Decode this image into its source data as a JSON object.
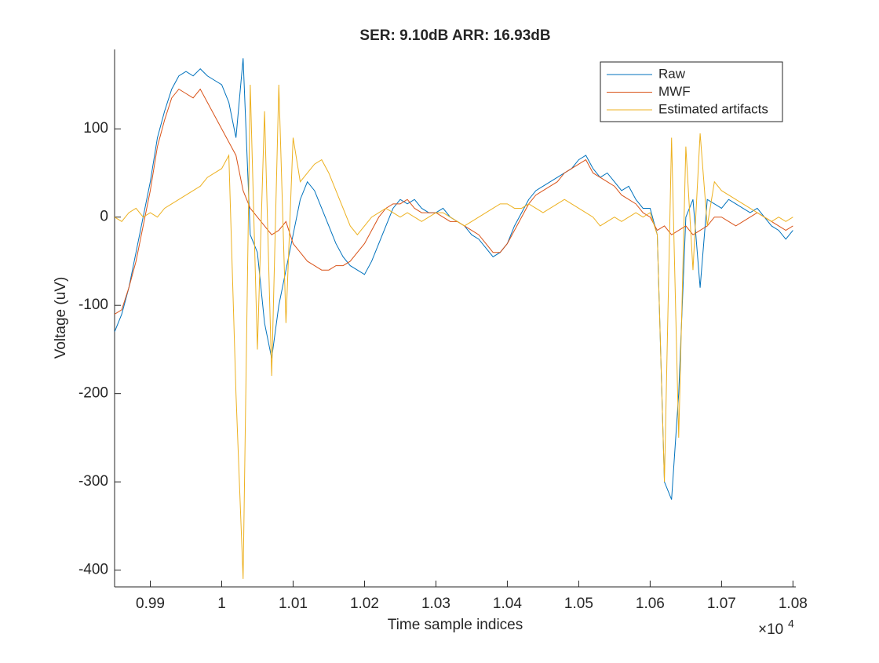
{
  "chart_data": {
    "type": "line",
    "title": "SER: 9.10dB ARR: 16.93dB",
    "x_label": "Time sample indices",
    "y_label": "Voltage (uV)",
    "x_exponent": {
      "base": "×10",
      "power": "4"
    },
    "x": [
      0.985,
      0.986,
      0.987,
      0.988,
      0.989,
      0.99,
      0.991,
      0.992,
      0.993,
      0.994,
      0.995,
      0.996,
      0.997,
      0.998,
      0.999,
      1.0,
      1.001,
      1.002,
      1.003,
      1.004,
      1.005,
      1.006,
      1.007,
      1.008,
      1.009,
      1.01,
      1.011,
      1.012,
      1.013,
      1.014,
      1.015,
      1.016,
      1.017,
      1.018,
      1.019,
      1.02,
      1.021,
      1.022,
      1.023,
      1.024,
      1.025,
      1.026,
      1.027,
      1.028,
      1.029,
      1.03,
      1.031,
      1.032,
      1.033,
      1.034,
      1.035,
      1.036,
      1.037,
      1.038,
      1.039,
      1.04,
      1.041,
      1.042,
      1.043,
      1.044,
      1.045,
      1.046,
      1.047,
      1.048,
      1.049,
      1.05,
      1.051,
      1.052,
      1.053,
      1.054,
      1.055,
      1.056,
      1.057,
      1.058,
      1.059,
      1.06,
      1.061,
      1.062,
      1.063,
      1.064,
      1.065,
      1.066,
      1.067,
      1.068,
      1.069,
      1.07,
      1.071,
      1.072,
      1.073,
      1.074,
      1.075,
      1.076,
      1.077,
      1.078,
      1.079,
      1.08
    ],
    "series": [
      {
        "name": "Raw",
        "color": "#0072BD",
        "values": [
          -130,
          -110,
          -80,
          -40,
          0,
          40,
          90,
          120,
          145,
          160,
          165,
          160,
          168,
          160,
          155,
          150,
          130,
          90,
          180,
          -20,
          -40,
          -120,
          -160,
          -100,
          -60,
          -20,
          20,
          40,
          30,
          10,
          -10,
          -30,
          -45,
          -55,
          -60,
          -65,
          -50,
          -30,
          -10,
          10,
          20,
          15,
          20,
          10,
          5,
          5,
          10,
          0,
          -5,
          -10,
          -20,
          -25,
          -35,
          -45,
          -40,
          -30,
          -10,
          5,
          20,
          30,
          35,
          40,
          45,
          50,
          55,
          65,
          70,
          55,
          45,
          50,
          40,
          30,
          35,
          20,
          10,
          10,
          -20,
          -300,
          -320,
          -200,
          0,
          20,
          -80,
          20,
          15,
          10,
          20,
          15,
          10,
          5,
          10,
          0,
          -10,
          -15,
          -25,
          -15
        ]
      },
      {
        "name": "MWF",
        "color": "#D95319",
        "values": [
          -110,
          -105,
          -80,
          -50,
          -10,
          30,
          80,
          110,
          135,
          145,
          140,
          135,
          145,
          130,
          115,
          100,
          85,
          70,
          30,
          10,
          0,
          -10,
          -20,
          -15,
          -5,
          -30,
          -40,
          -50,
          -55,
          -60,
          -60,
          -55,
          -55,
          -50,
          -40,
          -30,
          -15,
          0,
          10,
          15,
          15,
          20,
          10,
          5,
          5,
          5,
          0,
          -5,
          -5,
          -10,
          -15,
          -20,
          -30,
          -40,
          -40,
          -30,
          -15,
          0,
          15,
          25,
          30,
          35,
          40,
          50,
          55,
          60,
          65,
          50,
          45,
          40,
          35,
          25,
          20,
          15,
          5,
          0,
          -15,
          -10,
          -20,
          -15,
          -10,
          -20,
          -15,
          -10,
          0,
          0,
          -5,
          -10,
          -5,
          0,
          5,
          0,
          -5,
          -10,
          -15,
          -10
        ]
      },
      {
        "name": "Estimated artifacts",
        "color": "#EDB120",
        "values": [
          0,
          -5,
          5,
          10,
          0,
          5,
          0,
          10,
          15,
          20,
          25,
          30,
          35,
          45,
          50,
          55,
          70,
          -200,
          -410,
          150,
          -150,
          120,
          -180,
          150,
          -120,
          90,
          40,
          50,
          60,
          65,
          50,
          30,
          10,
          -10,
          -20,
          -10,
          0,
          5,
          10,
          5,
          0,
          5,
          0,
          -5,
          0,
          5,
          5,
          0,
          -5,
          -10,
          -5,
          0,
          5,
          10,
          15,
          15,
          10,
          10,
          15,
          10,
          5,
          10,
          15,
          20,
          15,
          10,
          5,
          0,
          -10,
          -5,
          0,
          -5,
          0,
          5,
          0,
          5,
          -20,
          -300,
          90,
          -250,
          80,
          -60,
          95,
          -10,
          40,
          30,
          25,
          20,
          15,
          10,
          5,
          0,
          -5,
          0,
          -5,
          0
        ]
      }
    ],
    "xlim": [
      0.985,
      1.0804
    ],
    "xticks": [
      0.99,
      1,
      1.01,
      1.02,
      1.03,
      1.04,
      1.05,
      1.06,
      1.07,
      1.08
    ],
    "ylim": [
      -419,
      190
    ],
    "yticks": [
      -400,
      -300,
      -200,
      -100,
      0,
      100
    ],
    "grid": false,
    "legend": "northeast"
  }
}
